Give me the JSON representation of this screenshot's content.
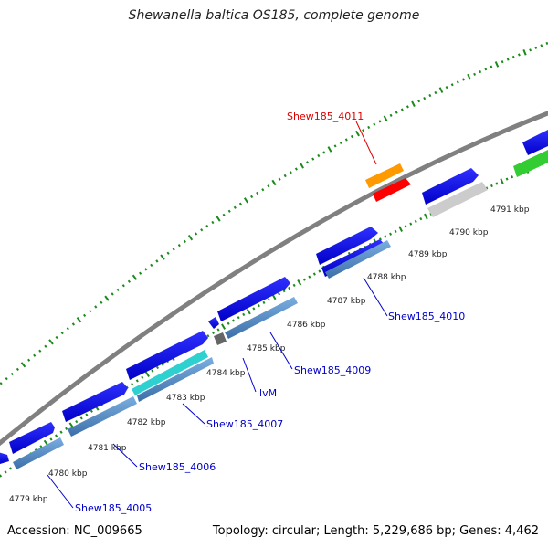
{
  "title": "Shewanella baltica OS185, complete genome",
  "footer": {
    "accession": "Accession: NC_009665",
    "summary": "Topology: circular; Length: 5,229,686 bp; Genes: 4,462"
  },
  "ticks": [
    "4779 kbp",
    "4780 kbp",
    "4781 kbp",
    "4782 kbp",
    "4783 kbp",
    "4784 kbp",
    "4785 kbp",
    "4786 kbp",
    "4787 kbp",
    "4788 kbp",
    "4789 kbp",
    "4790 kbp",
    "4791 kbp"
  ],
  "gene_labels": [
    {
      "id": "Shew185_4005",
      "color": "#0000cc"
    },
    {
      "id": "Shew185_4006",
      "color": "#0000cc"
    },
    {
      "id": "Shew185_4007",
      "color": "#0000cc"
    },
    {
      "id": "ilvM",
      "color": "#0000cc"
    },
    {
      "id": "Shew185_4009",
      "color": "#0000cc"
    },
    {
      "id": "Shew185_4010",
      "color": "#0000cc"
    },
    {
      "id": "Shew185_4011",
      "color": "#dd0000"
    }
  ],
  "colors": {
    "backbone": "#808080",
    "dots": "#1a8a1a",
    "cds": "#0000ee",
    "gene_blue": "#5a8fc8",
    "cyan": "#22cccc",
    "orange": "#ff9900",
    "red": "#ff0000",
    "gray": "#c8c8c8",
    "dark": "#666666",
    "green": "#33cc33"
  }
}
